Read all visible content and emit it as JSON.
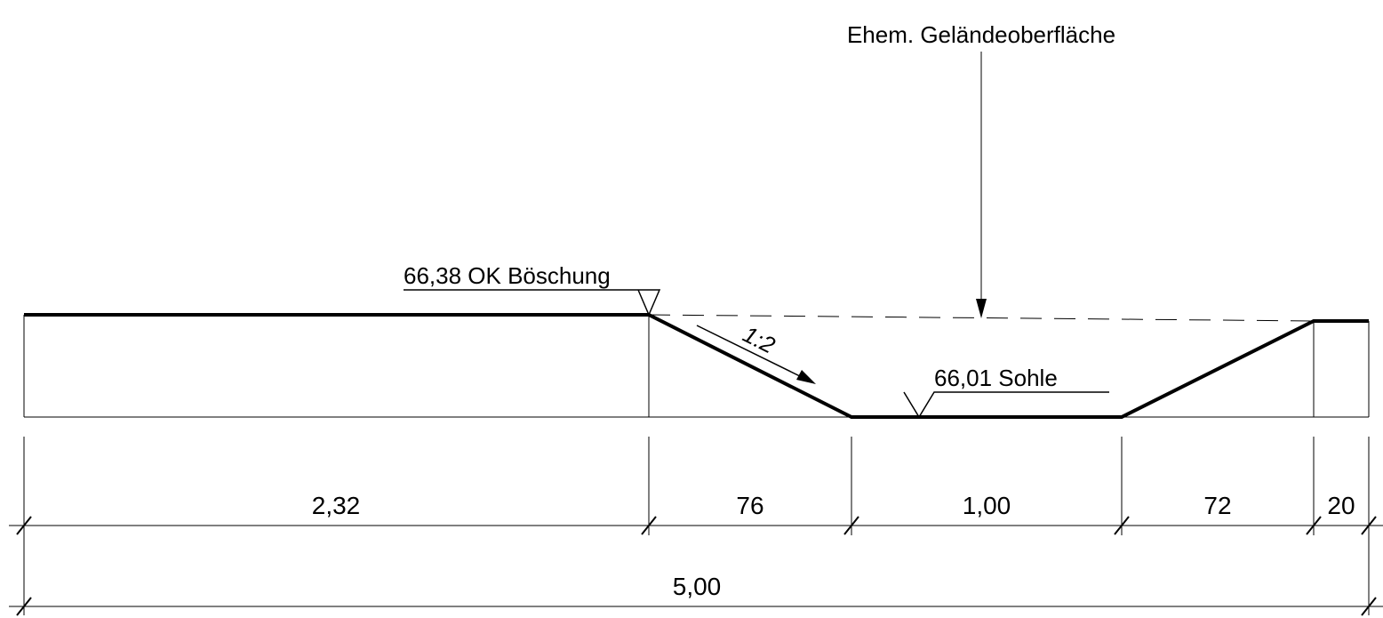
{
  "annotations": {
    "former_ground": "Ehem. Geländeoberfläche",
    "top_of_slope": "66,38 OK Böschung",
    "slope_ratio": "1:2",
    "bottom_level": "66,01 Sohle"
  },
  "dimensions": {
    "segments": [
      "2,32",
      "76",
      "1,00",
      "72",
      "20"
    ],
    "total": "5,00"
  }
}
